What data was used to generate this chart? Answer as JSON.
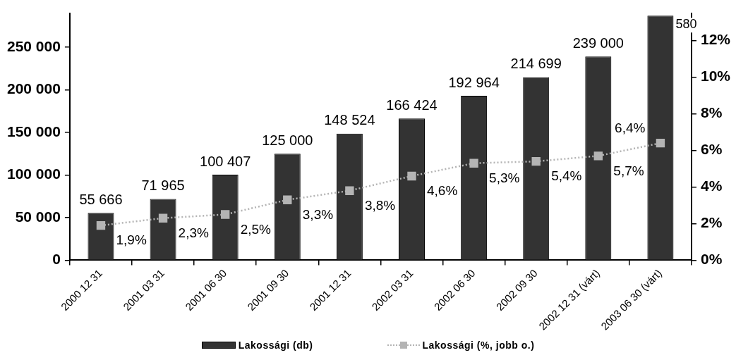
{
  "chart_data": {
    "type": "bar",
    "categories": [
      "2000 12 31",
      "2001 03 31",
      "2001 06 30",
      "2001 09 30",
      "2001 12 31",
      "2002 03 31",
      "2002 06 30",
      "2002 09 30",
      "2002 12 31 (várt)",
      "2003 06 30 (várt)"
    ],
    "series": [
      {
        "name": "Lakossági (db)",
        "color": "#333333",
        "values": [
          55666,
          71965,
          100407,
          125000,
          148524,
          166424,
          192964,
          214699,
          239000,
          287000
        ],
        "value_labels": [
          "55 666",
          "71 965",
          "100 407",
          "125 000",
          "148 524",
          "166 424",
          "192 964",
          "214 699",
          "239 000",
          null
        ]
      },
      {
        "name": "Lakossági (%, jobb o.)",
        "type": "line",
        "axis": "y2",
        "color": "#b4b4b4",
        "values": [
          1.9,
          2.3,
          2.5,
          3.3,
          3.8,
          4.6,
          5.3,
          5.4,
          5.7,
          6.4
        ],
        "value_labels": [
          "1,9%",
          "2,3%",
          "2,5%",
          "3,3%",
          "3,8%",
          "4,6%",
          "5,3%",
          "5,4%",
          "5,7%",
          "6,4%"
        ]
      }
    ],
    "annotations": [
      {
        "text": "580",
        "x": "2003 06 30 (várt)",
        "y": 287000
      }
    ],
    "ylim": [
      0,
      290000
    ],
    "yticks": [
      0,
      {
        "value": 50000,
        "label": "50 000"
      },
      {
        "value": 100000,
        "label": "100 000"
      },
      {
        "value": 150000,
        "label": "150 000"
      },
      {
        "value": 200000,
        "label": "200 000"
      },
      {
        "value": 250000,
        "label": "250 000"
      }
    ],
    "y2lim": [
      0,
      13.5
    ],
    "y2ticks": [
      {
        "value": 0,
        "label": "0%"
      },
      {
        "value": 2,
        "label": "2%"
      },
      {
        "value": 4,
        "label": "4%"
      },
      {
        "value": 6,
        "label": "6%"
      },
      {
        "value": 8,
        "label": "8%"
      },
      {
        "value": 10,
        "label": "10%"
      },
      {
        "value": 12,
        "label": "12%"
      }
    ],
    "legend": "bottom",
    "marker": "square",
    "line_style": "dotted"
  }
}
